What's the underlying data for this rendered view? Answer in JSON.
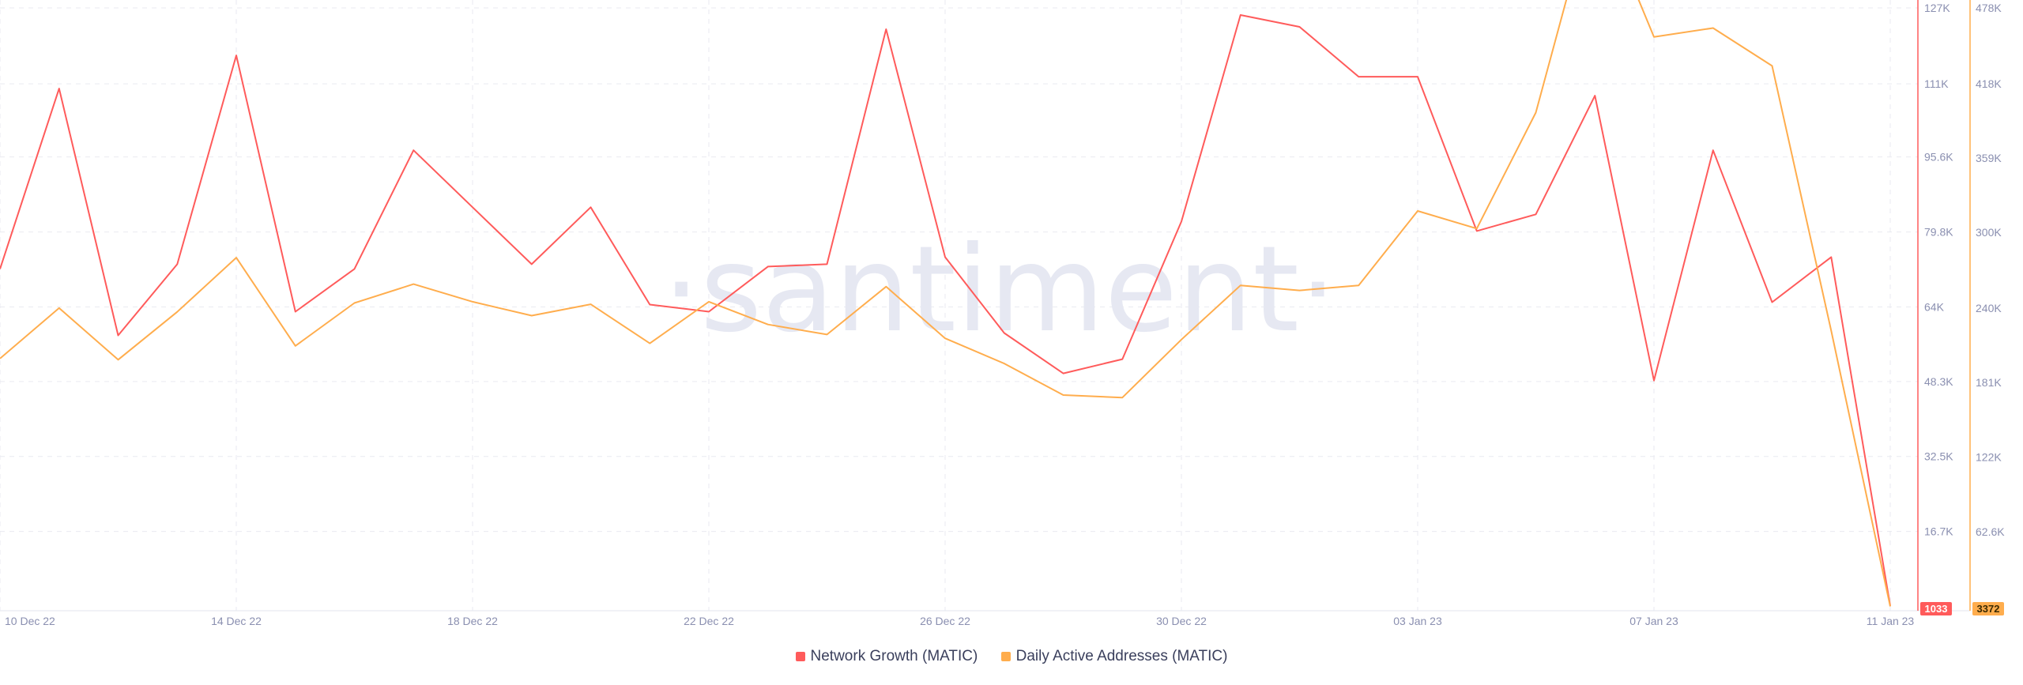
{
  "watermark": "·santiment·",
  "chart_data": {
    "type": "line",
    "x": [
      "10 Dec 22",
      "11 Dec 22",
      "12 Dec 22",
      "13 Dec 22",
      "14 Dec 22",
      "15 Dec 22",
      "16 Dec 22",
      "17 Dec 22",
      "18 Dec 22",
      "19 Dec 22",
      "20 Dec 22",
      "21 Dec 22",
      "22 Dec 22",
      "23 Dec 22",
      "24 Dec 22",
      "25 Dec 22",
      "26 Dec 22",
      "27 Dec 22",
      "28 Dec 22",
      "29 Dec 22",
      "30 Dec 22",
      "31 Dec 22",
      "01 Jan 23",
      "02 Jan 23",
      "03 Jan 23",
      "04 Jan 23",
      "05 Jan 23",
      "06 Jan 23",
      "07 Jan 23",
      "08 Jan 23",
      "09 Jan 23",
      "10 Jan 23",
      "11 Jan 23"
    ],
    "x_tick_labels": [
      "10 Dec 22",
      "14 Dec 22",
      "18 Dec 22",
      "22 Dec 22",
      "26 Dec 22",
      "30 Dec 22",
      "03 Jan 23",
      "07 Jan 23",
      "11 Jan 23"
    ],
    "series": [
      {
        "name": "Network Growth (MATIC)",
        "color": "#ff5b5b",
        "axis": "left",
        "values": [
          72000,
          110000,
          58000,
          73000,
          117000,
          63000,
          72000,
          97000,
          85000,
          73000,
          85000,
          64500,
          63000,
          72500,
          73000,
          122500,
          74500,
          58500,
          50000,
          53000,
          82000,
          125500,
          123000,
          112500,
          112500,
          80000,
          83500,
          108500,
          48500,
          97000,
          65000,
          74500,
          1033
        ]
      },
      {
        "name": "Daily Active Addresses (MATIC)",
        "color": "#ffad4d",
        "axis": "right",
        "values": [
          200000,
          240000,
          199000,
          237000,
          280000,
          210000,
          244000,
          259000,
          245000,
          234000,
          243000,
          212000,
          245000,
          227000,
          219000,
          257000,
          216000,
          196000,
          171000,
          169000,
          215000,
          258000,
          254000,
          258000,
          317000,
          303000,
          395000,
          568000,
          455000,
          462000,
          432000,
          222000,
          3372
        ]
      }
    ],
    "y_left": {
      "ticks": [
        "16.7K",
        "32.5K",
        "48.3K",
        "64K",
        "79.8K",
        "95.6K",
        "111K",
        "127K"
      ],
      "tick_values": [
        16700,
        32500,
        48300,
        64000,
        79800,
        95600,
        111000,
        127000
      ],
      "range": [
        0,
        127000
      ],
      "last_label": "1033"
    },
    "y_right": {
      "ticks": [
        "62.6K",
        "122K",
        "181K",
        "240K",
        "300K",
        "359K",
        "418K",
        "478K"
      ],
      "tick_values": [
        62600,
        122000,
        181000,
        240000,
        300000,
        359000,
        418000,
        478000
      ],
      "range": [
        0,
        478000
      ],
      "last_label": "3372"
    },
    "grid": true,
    "legend_position": "bottom-center"
  },
  "legend": {
    "items": [
      {
        "label": "Network Growth (MATIC)",
        "color": "#ff5b5b"
      },
      {
        "label": "Daily Active Addresses (MATIC)",
        "color": "#ffad4d"
      }
    ]
  }
}
